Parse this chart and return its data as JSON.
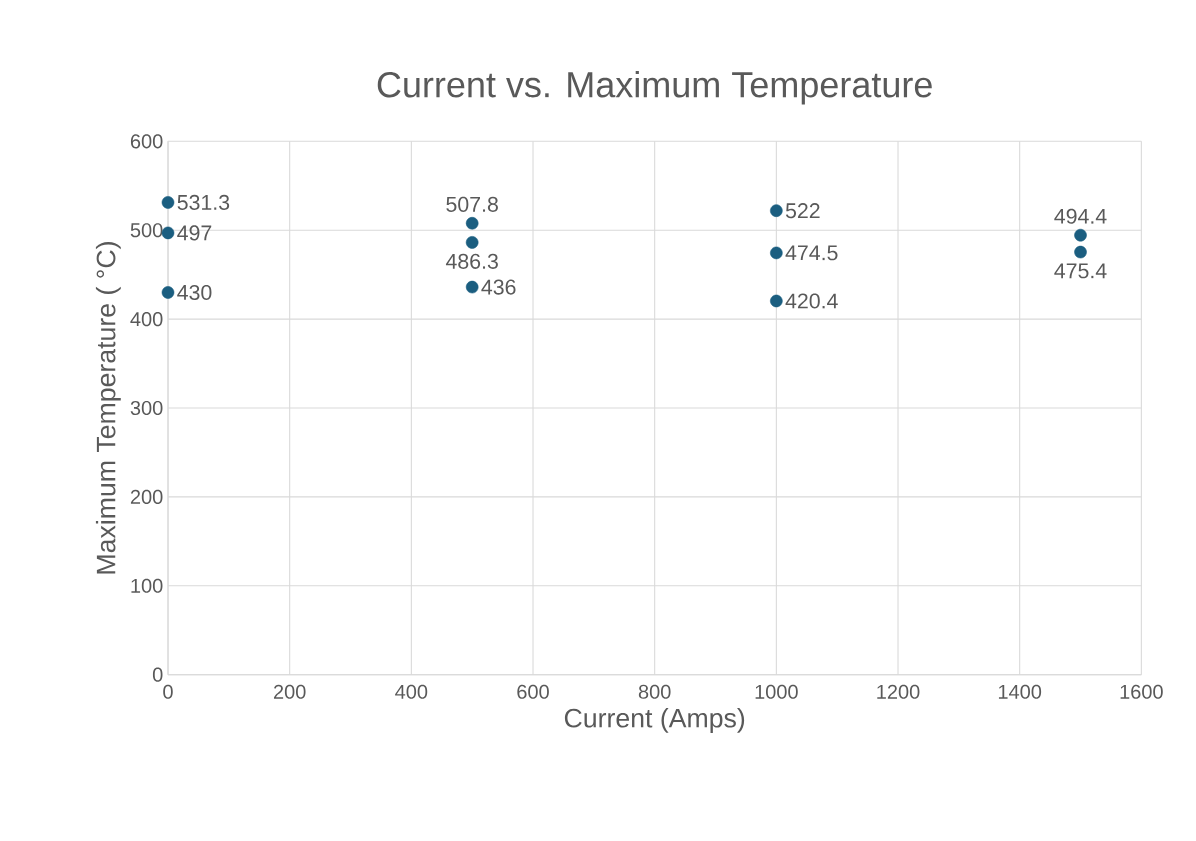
{
  "chart_data": {
    "type": "scatter",
    "title": "Current vs. Maximum Temperature",
    "xlabel": "Current (Amps)",
    "ylabel": "Maximum Temperature (  °C)",
    "series": [
      {
        "color": "#1b5e80",
        "x": [
          0,
          0,
          0,
          500,
          500,
          500,
          1000,
          1000,
          1000,
          1500,
          1500
        ],
        "values": [
          531.3,
          497,
          430,
          507.8,
          486.3,
          436,
          522,
          474.5,
          420.4,
          494.4,
          475.4
        ]
      }
    ],
    "xlim": [
      0,
      1600
    ],
    "xticks": [
      0,
      200,
      400,
      600,
      800,
      1000,
      1200,
      1400,
      1600
    ],
    "ylim": [
      0,
      600
    ],
    "yticks": [
      0,
      100,
      200,
      300,
      400,
      500,
      600
    ],
    "grid": true,
    "marker": "circle",
    "data_labels": true
  }
}
